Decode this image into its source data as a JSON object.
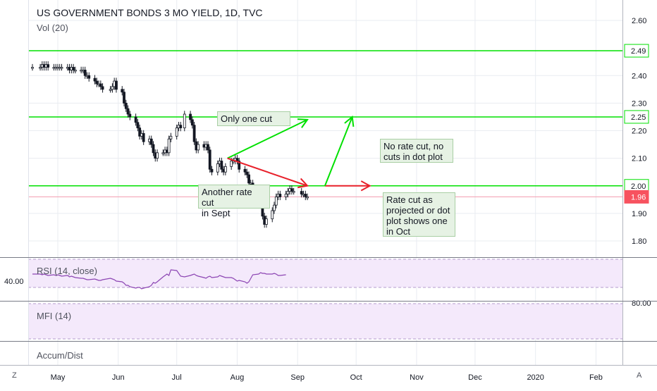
{
  "header": {
    "title": "US GOVERNMENT BONDS 3 MO YIELD, 1D, TVC",
    "volume_label": "Vol (20)"
  },
  "chart_data": {
    "type": "candlestick",
    "title": "US GOVERNMENT BONDS 3 MO YIELD, 1D, TVC",
    "x_range": [
      "2019-04-18",
      "2020-02-20"
    ],
    "ylim": [
      1.72,
      2.65
    ],
    "y_ticks": [
      "2.60",
      "2.40",
      "2.30",
      "2.20",
      "2.10",
      "1.90",
      "1.80"
    ],
    "x_ticks": [
      "May",
      "Jun",
      "Jul",
      "Aug",
      "Sep",
      "Oct",
      "Nov",
      "Dec",
      "2020",
      "Feb"
    ],
    "closes": [
      [
        "2019-04-18",
        2.43
      ],
      [
        "2019-04-22",
        2.43
      ],
      [
        "2019-04-23",
        2.44
      ],
      [
        "2019-04-24",
        2.43
      ],
      [
        "2019-04-25",
        2.44
      ],
      [
        "2019-04-26",
        2.43
      ],
      [
        "2019-04-29",
        2.43
      ],
      [
        "2019-04-30",
        2.43
      ],
      [
        "2019-05-01",
        2.43
      ],
      [
        "2019-05-02",
        2.43
      ],
      [
        "2019-05-03",
        2.43
      ],
      [
        "2019-05-06",
        2.43
      ],
      [
        "2019-05-07",
        2.42
      ],
      [
        "2019-05-08",
        2.43
      ],
      [
        "2019-05-09",
        2.42
      ],
      [
        "2019-05-10",
        2.42
      ],
      [
        "2019-05-13",
        2.42
      ],
      [
        "2019-05-14",
        2.42
      ],
      [
        "2019-05-15",
        2.4
      ],
      [
        "2019-05-16",
        2.4
      ],
      [
        "2019-05-17",
        2.39
      ],
      [
        "2019-05-20",
        2.38
      ],
      [
        "2019-05-21",
        2.37
      ],
      [
        "2019-05-22",
        2.37
      ],
      [
        "2019-05-23",
        2.36
      ],
      [
        "2019-05-24",
        2.35
      ],
      [
        "2019-05-28",
        2.35
      ],
      [
        "2019-05-29",
        2.36
      ],
      [
        "2019-05-30",
        2.38
      ],
      [
        "2019-05-31",
        2.35
      ],
      [
        "2019-06-03",
        2.34
      ],
      [
        "2019-06-04",
        2.3
      ],
      [
        "2019-06-05",
        2.28
      ],
      [
        "2019-06-06",
        2.26
      ],
      [
        "2019-06-07",
        2.25
      ],
      [
        "2019-06-10",
        2.23
      ],
      [
        "2019-06-11",
        2.21
      ],
      [
        "2019-06-12",
        2.18
      ],
      [
        "2019-06-13",
        2.19
      ],
      [
        "2019-06-14",
        2.16
      ],
      [
        "2019-06-17",
        2.17
      ],
      [
        "2019-06-18",
        2.15
      ],
      [
        "2019-06-19",
        2.12
      ],
      [
        "2019-06-20",
        2.1
      ],
      [
        "2019-06-21",
        2.12
      ],
      [
        "2019-06-24",
        2.12
      ],
      [
        "2019-06-25",
        2.13
      ],
      [
        "2019-06-26",
        2.12
      ],
      [
        "2019-06-27",
        2.17
      ],
      [
        "2019-06-28",
        2.18
      ],
      [
        "2019-07-01",
        2.21
      ],
      [
        "2019-07-02",
        2.22
      ],
      [
        "2019-07-03",
        2.21
      ],
      [
        "2019-07-05",
        2.26
      ],
      [
        "2019-07-08",
        2.24
      ],
      [
        "2019-07-09",
        2.22
      ],
      [
        "2019-07-10",
        2.16
      ],
      [
        "2019-07-11",
        2.13
      ],
      [
        "2019-07-12",
        2.15
      ],
      [
        "2019-07-15",
        2.14
      ],
      [
        "2019-07-16",
        2.15
      ],
      [
        "2019-07-17",
        2.13
      ],
      [
        "2019-07-18",
        2.06
      ],
      [
        "2019-07-19",
        2.05
      ],
      [
        "2019-07-22",
        2.08
      ],
      [
        "2019-07-23",
        2.09
      ],
      [
        "2019-07-24",
        2.06
      ],
      [
        "2019-07-25",
        2.05
      ],
      [
        "2019-07-26",
        2.07
      ],
      [
        "2019-07-29",
        2.09
      ],
      [
        "2019-07-30",
        2.09
      ],
      [
        "2019-07-31",
        2.1
      ],
      [
        "2019-08-01",
        2.09
      ],
      [
        "2019-08-02",
        2.06
      ],
      [
        "2019-08-05",
        2.05
      ],
      [
        "2019-08-06",
        2.04
      ],
      [
        "2019-08-07",
        2.01
      ],
      [
        "2019-08-08",
        2.01
      ],
      [
        "2019-08-09",
        1.99
      ],
      [
        "2019-08-12",
        1.98
      ],
      [
        "2019-08-13",
        1.97
      ],
      [
        "2019-08-14",
        1.89
      ],
      [
        "2019-08-15",
        1.86
      ],
      [
        "2019-08-16",
        1.88
      ],
      [
        "2019-08-19",
        1.91
      ],
      [
        "2019-08-20",
        1.93
      ],
      [
        "2019-08-21",
        1.96
      ],
      [
        "2019-08-22",
        1.97
      ],
      [
        "2019-08-23",
        1.96
      ],
      [
        "2019-08-26",
        1.97
      ],
      [
        "2019-08-27",
        1.98
      ],
      [
        "2019-08-28",
        1.99
      ],
      [
        "2019-08-29",
        1.98
      ],
      [
        "2019-08-30",
        1.98
      ],
      [
        "2019-09-03",
        1.97
      ],
      [
        "2019-09-04",
        1.97
      ],
      [
        "2019-09-05",
        1.96
      ],
      [
        "2019-09-06",
        1.96
      ]
    ],
    "horizontal_lines": [
      {
        "value": 2.49,
        "label": "2.49",
        "color": "#00e000"
      },
      {
        "value": 2.25,
        "label": "2.25",
        "color": "#00e000"
      },
      {
        "value": 2.0,
        "label": "2.00",
        "color": "#00e000"
      },
      {
        "value": 1.96,
        "label": "1.96",
        "color": "#f29cae"
      }
    ],
    "arrows": [
      {
        "from": [
          "2019-07-27",
          2.1
        ],
        "to": [
          "2019-09-06",
          2.24
        ],
        "color": "#00e000"
      },
      {
        "from": [
          "2019-07-27",
          2.1
        ],
        "to": [
          "2019-09-06",
          2.0
        ],
        "color": "#e8202a"
      },
      {
        "from": [
          "2019-09-15",
          2.0
        ],
        "to": [
          "2019-10-08",
          2.0
        ],
        "color": "#e8202a"
      },
      {
        "from": [
          "2019-09-15",
          2.0
        ],
        "to": [
          "2019-09-29",
          2.25
        ],
        "color": "#00e000"
      }
    ],
    "annotations": [
      {
        "text": "Only one cut"
      },
      {
        "text": "Another rate cut\nin Sept"
      },
      {
        "text": "No rate cut, no\ncuts in dot plot"
      },
      {
        "text": "Rate cut as\nprojected or dot\nplot shows one\nin Oct"
      }
    ],
    "colors": {
      "up": "#ffffff",
      "down": "#131722",
      "grid": "#e9ecf1"
    }
  },
  "rsi": {
    "title": "RSI (14, close)",
    "value_label": "40.00",
    "values": [
      49,
      49,
      48,
      49,
      48,
      47,
      48,
      47,
      48,
      47,
      46,
      47,
      45,
      46,
      45,
      44,
      43,
      43,
      42,
      41,
      41,
      42,
      41,
      40,
      40,
      41,
      43,
      42,
      41,
      39,
      38,
      36,
      33,
      33,
      31,
      29,
      30,
      30,
      28,
      29,
      31,
      33,
      37,
      36,
      38,
      45,
      47,
      49,
      47,
      55,
      54,
      50,
      46,
      45,
      47,
      48,
      49,
      47,
      46,
      44,
      43,
      45,
      46,
      44,
      45,
      47,
      46,
      45,
      44,
      44,
      43,
      41,
      39,
      40,
      38,
      36,
      38,
      43,
      48,
      49,
      51,
      50,
      50,
      49,
      49,
      50,
      49,
      47,
      47,
      48
    ],
    "band_top": 70,
    "band_bottom": 30,
    "range": [
      15,
      75
    ],
    "color": "#8c45b3"
  },
  "mfi": {
    "title": "MFI (14)",
    "value_label": "80.00"
  },
  "accum": {
    "title": "Accum/Dist"
  },
  "bottom_bar": {
    "left_button": "Z",
    "right_button": "A"
  }
}
